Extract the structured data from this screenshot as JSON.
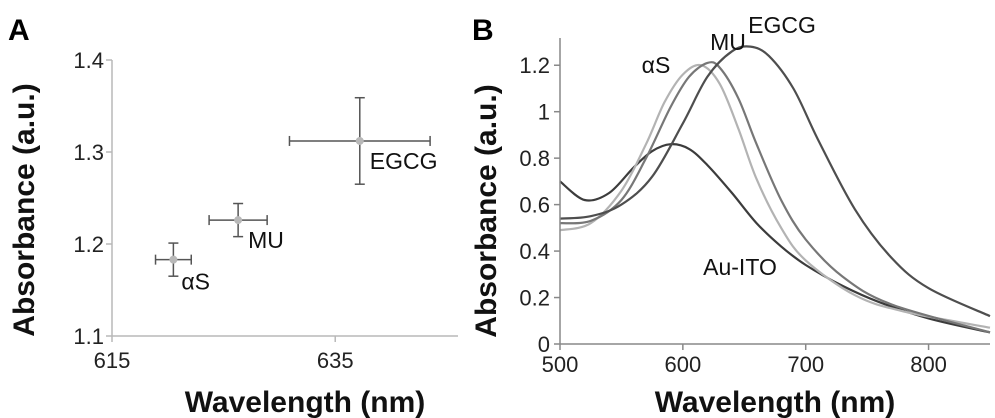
{
  "chart_data": [
    {
      "panel": "A",
      "type": "scatter",
      "xlabel": "Wavelength (nm)",
      "ylabel": "Absorbance (a.u.)",
      "xlim": [
        615,
        646
      ],
      "ylim": [
        1.1,
        1.4
      ],
      "x_ticks": [
        "615",
        "635"
      ],
      "y_ticks": [
        "1.1",
        "1.2",
        "1.3",
        "1.4"
      ],
      "grid": false,
      "points": [
        {
          "label": "αS",
          "x": 620.5,
          "y": 1.183,
          "xerr": 1.6,
          "yerr": 0.018
        },
        {
          "label": "MU",
          "x": 626.3,
          "y": 1.226,
          "xerr": 2.6,
          "yerr": 0.018
        },
        {
          "label": "EGCG",
          "x": 637.2,
          "y": 1.312,
          "xerr": 6.3,
          "yerr": 0.047
        }
      ]
    },
    {
      "panel": "B",
      "type": "line",
      "xlabel": "Wavelength (nm)",
      "ylabel": "Absorbance (a.u.)",
      "xlim": [
        500,
        850
      ],
      "ylim": [
        0,
        1.3
      ],
      "x_ticks": [
        "500",
        "600",
        "700",
        "800"
      ],
      "y_ticks": [
        "0",
        "0.2",
        "0.4",
        "0.6",
        "0.8",
        "1",
        "1.2"
      ],
      "grid": false,
      "series": [
        {
          "name": "Au-ITO",
          "color": "#3c3c3c",
          "x": [
            500,
            520,
            540,
            560,
            575,
            590,
            605,
            620,
            640,
            660,
            680,
            700,
            730,
            760,
            800,
            850
          ],
          "y": [
            0.7,
            0.62,
            0.65,
            0.76,
            0.83,
            0.86,
            0.84,
            0.77,
            0.65,
            0.52,
            0.42,
            0.34,
            0.25,
            0.18,
            0.11,
            0.05
          ]
        },
        {
          "name": "αS",
          "color": "#b3b3b3",
          "x": [
            500,
            525,
            550,
            570,
            585,
            600,
            615,
            630,
            645,
            660,
            680,
            700,
            740,
            780,
            850
          ],
          "y": [
            0.49,
            0.52,
            0.66,
            0.86,
            1.04,
            1.16,
            1.2,
            1.12,
            0.93,
            0.71,
            0.5,
            0.36,
            0.21,
            0.14,
            0.07
          ]
        },
        {
          "name": "MU",
          "color": "#777777",
          "x": [
            500,
            525,
            550,
            570,
            590,
            605,
            620,
            630,
            645,
            660,
            680,
            700,
            730,
            770,
            850
          ],
          "y": [
            0.52,
            0.53,
            0.62,
            0.8,
            1.02,
            1.15,
            1.21,
            1.19,
            1.06,
            0.86,
            0.62,
            0.45,
            0.29,
            0.17,
            0.05
          ]
        },
        {
          "name": "EGCG",
          "color": "#4e4e4e",
          "x": [
            500,
            525,
            550,
            575,
            600,
            620,
            640,
            655,
            670,
            690,
            710,
            740,
            770,
            800,
            850
          ],
          "y": [
            0.54,
            0.55,
            0.6,
            0.72,
            0.95,
            1.15,
            1.26,
            1.28,
            1.24,
            1.1,
            0.88,
            0.58,
            0.37,
            0.24,
            0.12
          ]
        }
      ]
    }
  ]
}
